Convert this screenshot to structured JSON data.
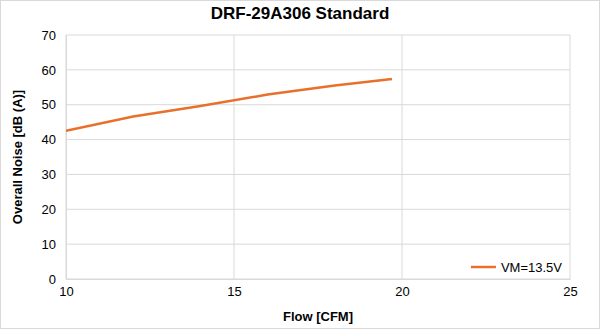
{
  "chart_data": {
    "type": "line",
    "title": "DRF-29A306 Standard",
    "x_label": "Flow [CFM]",
    "y_label": "Overall Noise [dB (A)]",
    "x": [
      10,
      12,
      14,
      16,
      18,
      19.7
    ],
    "series": [
      {
        "name": "VM=13.5V",
        "color": "#e8702a",
        "values": [
          42.5,
          46.6,
          49.6,
          52.9,
          55.5,
          57.4
        ]
      }
    ],
    "xlim": [
      10,
      25
    ],
    "xticks": [
      10,
      15,
      20,
      25
    ],
    "ylim": [
      0,
      70
    ],
    "yticks": [
      0,
      10,
      20,
      30,
      40,
      50,
      60,
      70
    ],
    "grid": true,
    "legend": "bottom-right"
  }
}
